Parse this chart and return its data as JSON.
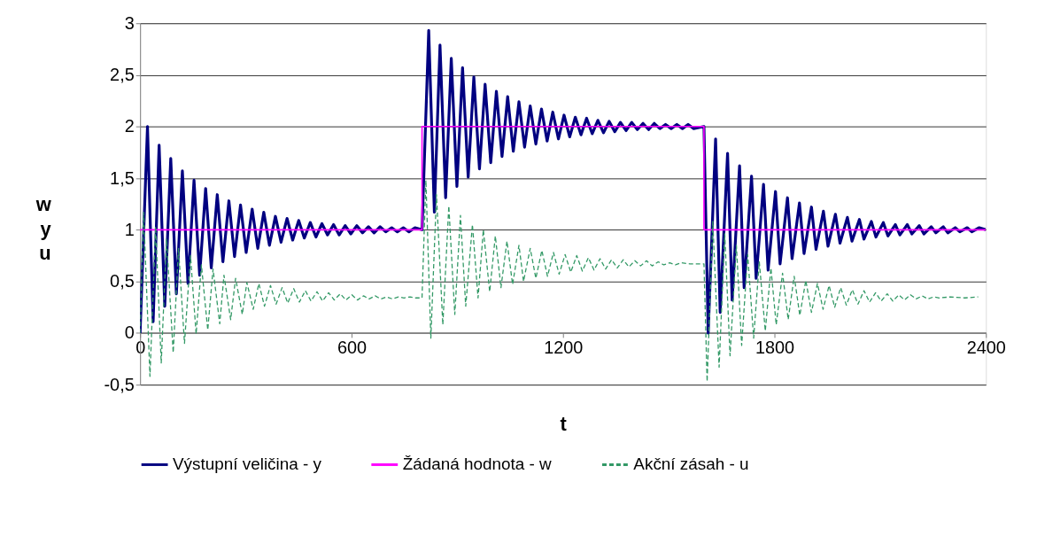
{
  "chart_data": {
    "type": "line",
    "xlabel": "t",
    "ylabel": "w\ny\nu",
    "xlim": [
      0,
      2400
    ],
    "ylim": [
      -0.5,
      3
    ],
    "xticks": [
      0,
      600,
      1200,
      1800,
      2400
    ],
    "yticks": [
      {
        "value": -0.5,
        "label": "-0,5"
      },
      0,
      {
        "value": 0.5,
        "label": "0,5"
      },
      1,
      {
        "value": 1.5,
        "label": "1,5"
      },
      2,
      {
        "value": 2.5,
        "label": "2,5"
      },
      3
    ],
    "grid": "y",
    "legend": "bottom",
    "marker": "none",
    "series": [
      {
        "name": "Výstupní veličina - y",
        "color": "#000080",
        "line_style": "solid",
        "x": [
          0,
          21,
          37,
          54,
          70,
          87,
          103,
          120,
          136,
          153,
          169,
          186,
          202,
          219,
          235,
          252,
          268,
          285,
          301,
          318,
          334,
          351,
          367,
          384,
          400,
          417,
          433,
          450,
          466,
          483,
          499,
          516,
          532,
          549,
          565,
          582,
          598,
          615,
          631,
          648,
          664,
          681,
          697,
          714,
          730,
          747,
          763,
          780,
          800,
          819,
          835,
          851,
          867,
          883,
          899,
          915,
          931,
          947,
          963,
          979,
          995,
          1011,
          1027,
          1043,
          1059,
          1075,
          1091,
          1107,
          1123,
          1139,
          1155,
          1171,
          1187,
          1203,
          1219,
          1235,
          1251,
          1267,
          1283,
          1299,
          1315,
          1331,
          1347,
          1363,
          1379,
          1395,
          1411,
          1427,
          1443,
          1459,
          1475,
          1491,
          1507,
          1523,
          1539,
          1555,
          1571,
          1600,
          1612,
          1633,
          1646,
          1667,
          1680,
          1701,
          1714,
          1735,
          1748,
          1769,
          1782,
          1803,
          1816,
          1837,
          1850,
          1871,
          1884,
          1905,
          1918,
          1939,
          1952,
          1973,
          1986,
          2007,
          2020,
          2041,
          2054,
          2075,
          2088,
          2109,
          2122,
          2143,
          2156,
          2177,
          2190,
          2211,
          2224,
          2245,
          2258,
          2279,
          2292,
          2313,
          2326,
          2347,
          2360,
          2381,
          2400
        ],
        "values": [
          0,
          2.0,
          0.11,
          1.82,
          0.26,
          1.69,
          0.38,
          1.57,
          0.48,
          1.48,
          0.56,
          1.4,
          0.63,
          1.34,
          0.69,
          1.28,
          0.74,
          1.24,
          0.78,
          1.2,
          0.82,
          1.17,
          0.85,
          1.13,
          0.88,
          1.11,
          0.9,
          1.09,
          0.92,
          1.07,
          0.93,
          1.06,
          0.95,
          1.05,
          0.95,
          1.04,
          0.96,
          1.04,
          0.97,
          1.03,
          0.97,
          1.03,
          0.98,
          1.02,
          0.98,
          1.02,
          0.98,
          1.02,
          1.0,
          2.93,
          1.17,
          2.79,
          1.31,
          2.66,
          1.42,
          2.57,
          1.51,
          2.48,
          1.59,
          2.41,
          1.65,
          2.34,
          1.71,
          2.29,
          1.76,
          2.24,
          1.8,
          2.2,
          1.83,
          2.17,
          1.86,
          2.14,
          1.88,
          2.11,
          1.9,
          2.09,
          1.92,
          2.08,
          1.93,
          2.06,
          1.94,
          2.05,
          1.95,
          2.04,
          1.96,
          2.04,
          1.97,
          2.03,
          1.97,
          2.03,
          1.98,
          2.02,
          1.98,
          2.02,
          1.98,
          2.02,
          1.98,
          2.0,
          0.0,
          1.88,
          0.2,
          1.74,
          0.32,
          1.62,
          0.44,
          1.52,
          0.53,
          1.44,
          0.61,
          1.37,
          0.67,
          1.31,
          0.72,
          1.26,
          0.77,
          1.22,
          0.81,
          1.18,
          0.84,
          1.15,
          0.87,
          1.12,
          0.89,
          1.1,
          0.91,
          1.08,
          0.93,
          1.07,
          0.94,
          1.05,
          0.95,
          1.05,
          0.96,
          1.04,
          0.96,
          1.03,
          0.97,
          1.03,
          0.97,
          1.02,
          0.98,
          1.02,
          0.98,
          1.02,
          1.0
        ]
      },
      {
        "name": "Žádaná hodnota - w",
        "color": "#ff00ff",
        "line_style": "solid",
        "x": [
          0,
          800,
          800,
          1600,
          1600,
          2400
        ],
        "values": [
          1,
          1,
          2,
          2,
          1,
          1
        ]
      },
      {
        "name": "Akční zásah - u",
        "color": "#339966",
        "line_style": "dashed",
        "x": [
          0,
          10,
          28,
          44,
          60,
          75,
          94,
          109,
          126,
          143,
          159,
          174,
          192,
          207,
          226,
          238,
          257,
          271,
          290,
          303,
          321,
          337,
          353,
          370,
          386,
          403,
          419,
          436,
          452,
          469,
          485,
          502,
          518,
          535,
          551,
          568,
          584,
          601,
          617,
          634,
          650,
          667,
          683,
          700,
          716,
          733,
          749,
          766,
          782,
          800,
          811,
          825,
          841,
          859,
          876,
          893,
          909,
          924,
          943,
          959,
          974,
          992,
          1008,
          1024,
          1041,
          1057,
          1075,
          1088,
          1107,
          1123,
          1140,
          1156,
          1173,
          1189,
          1206,
          1222,
          1239,
          1255,
          1272,
          1288,
          1305,
          1321,
          1338,
          1354,
          1371,
          1387,
          1404,
          1420,
          1437,
          1453,
          1470,
          1486,
          1503,
          1519,
          1536,
          1560,
          1600,
          1609,
          1625,
          1643,
          1659,
          1674,
          1692,
          1707,
          1724,
          1741,
          1757,
          1774,
          1790,
          1805,
          1823,
          1839,
          1856,
          1872,
          1889,
          1905,
          1922,
          1938,
          1955,
          1971,
          1988,
          2004,
          2021,
          2037,
          2054,
          2070,
          2087,
          2103,
          2120,
          2136,
          2153,
          2169,
          2186,
          2202,
          2219,
          2235,
          2252,
          2268,
          2300,
          2340,
          2378
        ],
        "values": [
          0,
          1.17,
          -0.42,
          1.03,
          -0.29,
          0.91,
          -0.19,
          0.82,
          -0.1,
          0.75,
          -0.01,
          0.66,
          0.03,
          0.62,
          0.09,
          0.56,
          0.13,
          0.53,
          0.18,
          0.49,
          0.23,
          0.48,
          0.26,
          0.46,
          0.28,
          0.44,
          0.29,
          0.43,
          0.3,
          0.41,
          0.31,
          0.4,
          0.31,
          0.39,
          0.32,
          0.38,
          0.32,
          0.37,
          0.32,
          0.36,
          0.33,
          0.36,
          0.33,
          0.35,
          0.33,
          0.35,
          0.34,
          0.35,
          0.34,
          0.34,
          1.48,
          -0.05,
          1.34,
          0.08,
          1.23,
          0.18,
          1.14,
          0.26,
          1.05,
          0.34,
          1.0,
          0.4,
          0.94,
          0.44,
          0.89,
          0.47,
          0.85,
          0.5,
          0.82,
          0.53,
          0.8,
          0.55,
          0.78,
          0.57,
          0.76,
          0.59,
          0.75,
          0.6,
          0.73,
          0.61,
          0.72,
          0.62,
          0.71,
          0.63,
          0.71,
          0.64,
          0.7,
          0.65,
          0.7,
          0.65,
          0.69,
          0.66,
          0.68,
          0.66,
          0.68,
          0.67,
          0.67,
          -0.47,
          1.08,
          -0.33,
          0.96,
          -0.22,
          0.85,
          -0.12,
          0.76,
          -0.05,
          0.69,
          0.02,
          0.63,
          0.08,
          0.58,
          0.13,
          0.55,
          0.17,
          0.51,
          0.2,
          0.48,
          0.23,
          0.46,
          0.25,
          0.44,
          0.27,
          0.42,
          0.28,
          0.41,
          0.3,
          0.39,
          0.31,
          0.38,
          0.31,
          0.37,
          0.32,
          0.37,
          0.33,
          0.36,
          0.33,
          0.35,
          0.34,
          0.35,
          0.34,
          0.35
        ]
      }
    ]
  }
}
